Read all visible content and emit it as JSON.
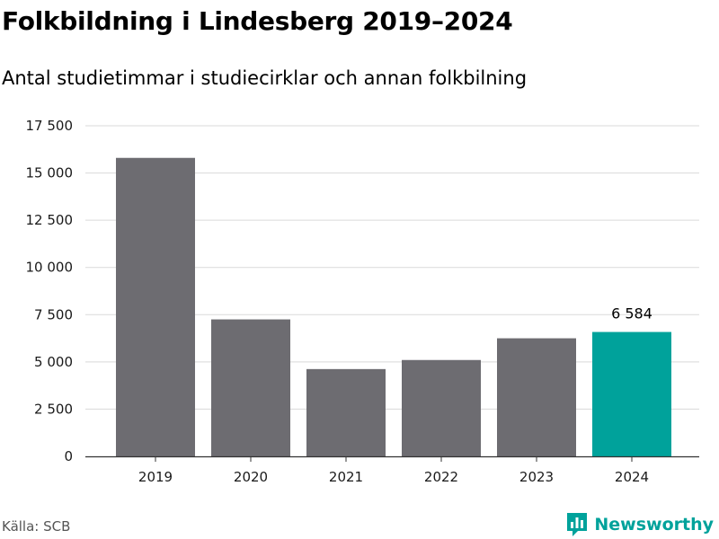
{
  "header": {
    "title": "Folkbildning i Lindesberg 2019–2024",
    "subtitle": "Antal studietimmar i studiecirklar och annan folkbilning"
  },
  "footer": {
    "source": "Källa: SCB",
    "brand": "Newsworthy",
    "brand_icon": "newsworthy-logo-icon"
  },
  "colors": {
    "bar": "#6d6c71",
    "highlight": "#00a29b",
    "grid": "#d9d9d9",
    "axis": "#333333"
  },
  "chart_data": {
    "type": "bar",
    "categories": [
      "2019",
      "2020",
      "2021",
      "2022",
      "2023",
      "2024"
    ],
    "values": [
      15800,
      7250,
      4620,
      5100,
      6250,
      6584
    ],
    "highlight_index": 5,
    "data_labels": [
      {
        "index": 5,
        "text": "6 584"
      }
    ],
    "ylim": [
      0,
      17500
    ],
    "yticks": [
      0,
      2500,
      5000,
      7500,
      10000,
      12500,
      15000,
      17500
    ],
    "ytick_labels": [
      "0",
      "2 500",
      "5 000",
      "7 500",
      "10 000",
      "12 500",
      "15 000",
      "17 500"
    ],
    "grid": true,
    "legend": "none"
  }
}
